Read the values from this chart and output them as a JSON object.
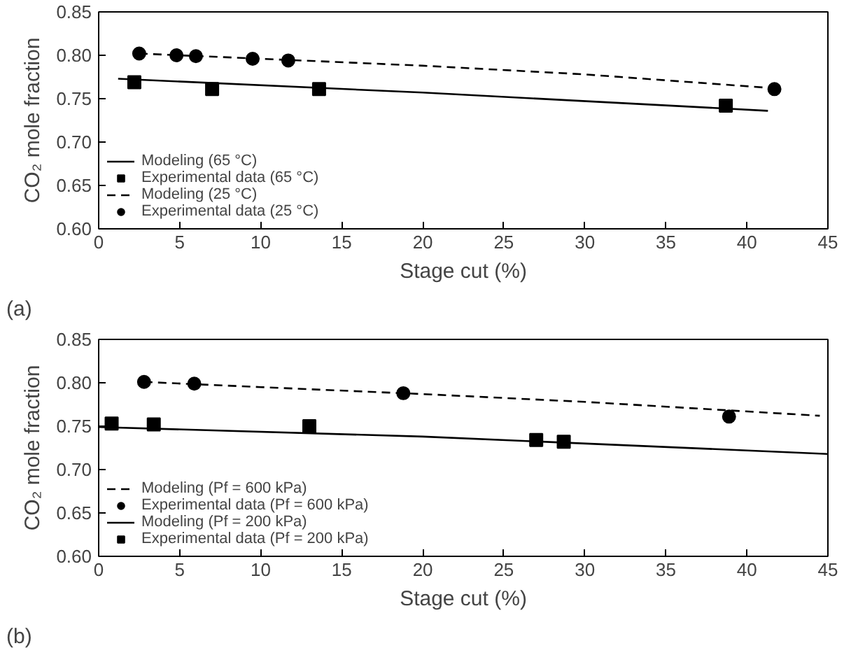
{
  "chart_data": [
    {
      "type": "line",
      "annotations": [
        "(a)"
      ],
      "xlabel": "Stage cut (%)",
      "ylabel": "CO₂ mole fraction",
      "xlim": [
        0,
        45
      ],
      "ylim": [
        0.6,
        0.85
      ],
      "xticks": [
        0,
        5,
        10,
        15,
        20,
        25,
        30,
        35,
        40,
        45
      ],
      "yticks": [
        {
          "value": 0.6,
          "label": "0.60"
        },
        {
          "value": 0.65,
          "label": "0.65"
        },
        {
          "value": 0.7,
          "label": "0.70"
        },
        {
          "value": 0.75,
          "label": "0.75"
        },
        {
          "value": 0.8,
          "label": "0.80"
        },
        {
          "value": 0.85,
          "label": "0.85"
        }
      ],
      "grid": false,
      "legend": "bottom left",
      "series": [
        {
          "name": "Modeling (65 °C)",
          "line_style": "solid",
          "color": "#000000",
          "x": [
            1.2,
            20,
            41.3
          ],
          "values": [
            0.773,
            0.757,
            0.736
          ]
        },
        {
          "name": "Experimental data (65 °C)",
          "type": "scatter",
          "marker": "square",
          "color": "#000000",
          "x": [
            2.2,
            7,
            13.6,
            38.7
          ],
          "values": [
            0.769,
            0.761,
            0.761,
            0.742
          ]
        },
        {
          "name": "Modeling (25 °C)",
          "line_style": "dashed",
          "color": "#000000",
          "x": [
            2.5,
            10,
            20,
            30,
            41.7
          ],
          "values": [
            0.802,
            0.796,
            0.788,
            0.778,
            0.762
          ]
        },
        {
          "name": "Experimental data (25 °C)",
          "type": "scatter",
          "marker": "circle",
          "color": "#000000",
          "x": [
            2.5,
            4.8,
            6,
            9.5,
            11.7,
            41.7
          ],
          "values": [
            0.802,
            0.8,
            0.799,
            0.796,
            0.794,
            0.761
          ]
        }
      ]
    },
    {
      "type": "line",
      "annotations": [
        "(b)"
      ],
      "xlabel": "Stage cut (%)",
      "ylabel": "CO₂ mole fraction",
      "xlim": [
        0,
        45
      ],
      "ylim": [
        0.6,
        0.85
      ],
      "xticks": [
        0,
        5,
        10,
        15,
        20,
        25,
        30,
        35,
        40,
        45
      ],
      "yticks": [
        {
          "value": 0.6,
          "label": "0.60"
        },
        {
          "value": 0.65,
          "label": "0.65"
        },
        {
          "value": 0.7,
          "label": "0.70"
        },
        {
          "value": 0.75,
          "label": "0.75"
        },
        {
          "value": 0.8,
          "label": "0.80"
        },
        {
          "value": 0.85,
          "label": "0.85"
        }
      ],
      "grid": false,
      "legend": "bottom left",
      "series": [
        {
          "name": "Modeling (Pf = 600 kPa)",
          "line_style": "dashed",
          "color": "#000000",
          "x": [
            2.8,
            10,
            20,
            30,
            44.5
          ],
          "values": [
            0.801,
            0.795,
            0.787,
            0.778,
            0.762
          ]
        },
        {
          "name": "Experimental data (Pf = 600 kPa)",
          "type": "scatter",
          "marker": "circle",
          "color": "#000000",
          "x": [
            2.8,
            5.9,
            18.8,
            38.9
          ],
          "values": [
            0.801,
            0.799,
            0.788,
            0.761
          ]
        },
        {
          "name": "Modeling (Pf = 200 kPa)",
          "line_style": "solid",
          "color": "#000000",
          "x": [
            0,
            20,
            45
          ],
          "values": [
            0.749,
            0.738,
            0.718
          ]
        },
        {
          "name": "Experimental data (Pf = 200 kPa)",
          "type": "scatter",
          "marker": "square",
          "color": "#000000",
          "x": [
            0.8,
            3.4,
            13,
            27,
            28.7
          ],
          "values": [
            0.753,
            0.752,
            0.75,
            0.734,
            0.732
          ]
        }
      ]
    }
  ]
}
